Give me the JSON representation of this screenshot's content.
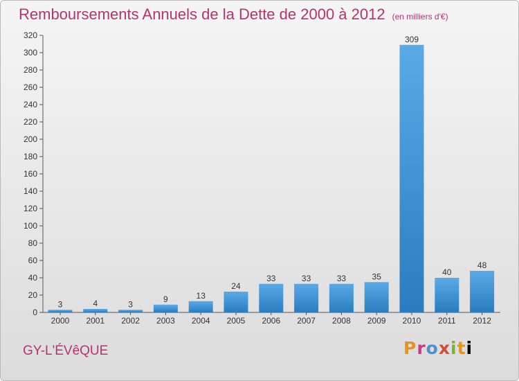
{
  "header": {
    "title": "Remboursements Annuels de la Dette de 2000 à 2012",
    "unit": "(en milliers d'€)"
  },
  "footer": {
    "commune": "GY-L'ÉVêQUE",
    "logo_letters": [
      "P",
      "r",
      "o",
      "x",
      "i",
      "t",
      "i"
    ]
  },
  "colors": {
    "title": "#b8336a",
    "bar_light": "#5aaae6",
    "bar_dark": "#2a7cbf"
  },
  "chart_data": {
    "type": "bar",
    "categories": [
      "2000",
      "2001",
      "2002",
      "2003",
      "2004",
      "2005",
      "2006",
      "2007",
      "2008",
      "2009",
      "2010",
      "2011",
      "2012"
    ],
    "values": [
      3,
      4,
      3,
      9,
      13,
      24,
      33,
      33,
      33,
      35,
      309,
      40,
      48
    ],
    "ylim": [
      0,
      320
    ],
    "yticks": [
      0,
      20,
      40,
      60,
      80,
      100,
      120,
      140,
      160,
      180,
      200,
      220,
      240,
      260,
      280,
      300,
      320
    ],
    "grid": false
  }
}
